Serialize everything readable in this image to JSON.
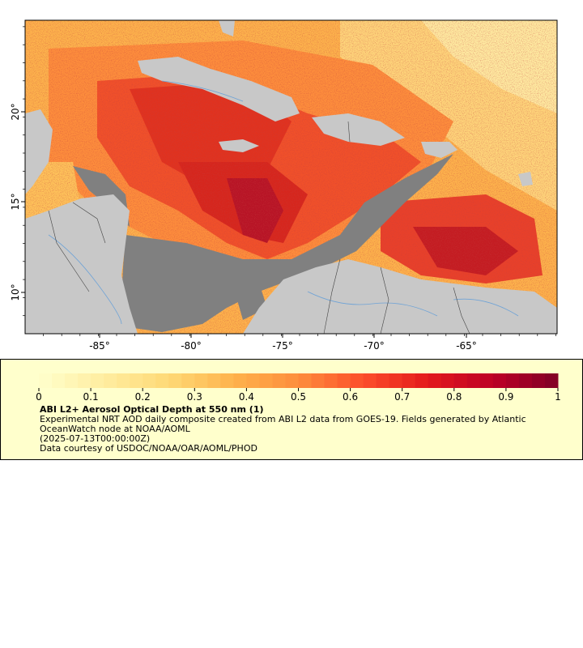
{
  "map": {
    "lon_ticks": [
      "-85°",
      "-80°",
      "-75°",
      "-70°",
      "-65°"
    ],
    "lat_ticks": [
      "20°",
      "15°",
      "10°"
    ],
    "colors": {
      "no_data_land": "#c8c8c8",
      "no_data_water": "#808080",
      "coastline": "#555555",
      "rivers": "#6fa3d6"
    }
  },
  "colorbar": {
    "labels": [
      "0",
      "0.1",
      "0.2",
      "0.3",
      "0.4",
      "0.5",
      "0.6",
      "0.7",
      "0.8",
      "0.9",
      "1"
    ],
    "min": 0,
    "max": 1,
    "colors": [
      "#ffffcc",
      "#ffeda0",
      "#fed976",
      "#feb24c",
      "#fd8d3c",
      "#fc4e2a",
      "#e31a1c",
      "#bd0026",
      "#800026"
    ]
  },
  "legend": {
    "title": "ABI L2+ Aerosol Optical Depth at 550 nm (1)",
    "line1": "Experimental NRT AOD daily composite created from ABI L2 data from GOES-19. Fields generated by Atlantic OceanWatch node at NOAA/AOML",
    "line2": "(2025-07-13T00:00:00Z)",
    "line3": "Data courtesy of USDOC/NOAA/OAR/AOML/PHOD"
  }
}
